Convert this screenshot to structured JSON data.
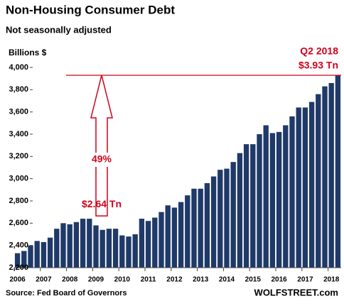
{
  "chart_data": {
    "type": "bar",
    "title": "Non-Housing Consumer Debt",
    "subtitle": "Not seasonally adjusted",
    "y_axis_label": "Billions $",
    "source": "Source: Fed Board of Governors",
    "brand": "WOLFSTREET.com",
    "annotations": {
      "latest_period": "Q2 2018",
      "latest_value": "$3.93 Tn",
      "change": "49%",
      "peak_value": "$2.64 Tn"
    },
    "categories": [
      "2006",
      null,
      null,
      null,
      "2007",
      null,
      null,
      null,
      "2008",
      null,
      null,
      null,
      "2009",
      null,
      null,
      null,
      "2010",
      null,
      null,
      null,
      "2011",
      null,
      null,
      null,
      "2012",
      null,
      null,
      null,
      "2013",
      null,
      null,
      null,
      "2014",
      null,
      null,
      null,
      "2015",
      null,
      null,
      null,
      "2016",
      null,
      null,
      null,
      "2017",
      null,
      null,
      null,
      "2018",
      null
    ],
    "values": [
      2330,
      2350,
      2400,
      2440,
      2430,
      2470,
      2550,
      2600,
      2590,
      2610,
      2640,
      2640,
      2580,
      2540,
      2550,
      2550,
      2490,
      2480,
      2500,
      2640,
      2620,
      2650,
      2700,
      2760,
      2740,
      2790,
      2850,
      2910,
      2910,
      2960,
      3020,
      3080,
      3090,
      3150,
      3230,
      3310,
      3310,
      3400,
      3480,
      3410,
      3420,
      3480,
      3560,
      3640,
      3640,
      3690,
      3760,
      3830,
      3860,
      3930
    ],
    "color": "#1f3a68",
    "annotation_color": "#d0021b",
    "ylim": [
      2200,
      4000
    ],
    "yticks": [
      {
        "value": 2200,
        "label": "2,200"
      },
      {
        "value": 2400,
        "label": "2,400"
      },
      {
        "value": 2600,
        "label": "2,600"
      },
      {
        "value": 2800,
        "label": "2,800"
      },
      {
        "value": 3000,
        "label": "3,000"
      },
      {
        "value": 3200,
        "label": "3,200"
      },
      {
        "value": 3400,
        "label": "3,400"
      },
      {
        "value": 3600,
        "label": "3,600"
      },
      {
        "value": 3800,
        "label": "3,800"
      },
      {
        "value": 4000,
        "label": "4,000"
      }
    ],
    "grid": false
  }
}
